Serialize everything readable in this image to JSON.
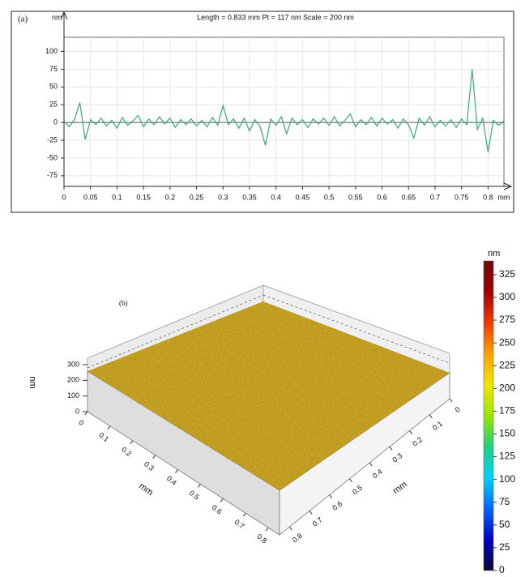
{
  "chart_data": [
    {
      "type": "line",
      "panel_label": "(a)",
      "title": "Length = 0.833 mm  Pt = 117 nm  Scale = 200 nm",
      "xlabel": "mm",
      "ylabel": "nm",
      "x": [
        0,
        0.01,
        0.02,
        0.03,
        0.04,
        0.05,
        0.06,
        0.07,
        0.08,
        0.09,
        0.1,
        0.11,
        0.12,
        0.13,
        0.14,
        0.15,
        0.16,
        0.17,
        0.18,
        0.19,
        0.2,
        0.21,
        0.22,
        0.23,
        0.24,
        0.25,
        0.26,
        0.27,
        0.28,
        0.29,
        0.3,
        0.31,
        0.32,
        0.33,
        0.34,
        0.35,
        0.36,
        0.37,
        0.38,
        0.39,
        0.4,
        0.41,
        0.42,
        0.43,
        0.44,
        0.45,
        0.46,
        0.47,
        0.48,
        0.49,
        0.5,
        0.51,
        0.52,
        0.53,
        0.54,
        0.55,
        0.56,
        0.57,
        0.58,
        0.59,
        0.6,
        0.61,
        0.62,
        0.63,
        0.64,
        0.65,
        0.66,
        0.67,
        0.68,
        0.69,
        0.7,
        0.71,
        0.72,
        0.73,
        0.74,
        0.75,
        0.76,
        0.77,
        0.78,
        0.79,
        0.8,
        0.81,
        0.82,
        0.83
      ],
      "series": [
        {
          "color": "#3aa97a",
          "values": [
            2,
            -6,
            5,
            28,
            -24,
            4,
            -3,
            6,
            -5,
            3,
            -8,
            7,
            -4,
            2,
            10,
            -6,
            5,
            -3,
            8,
            -2,
            6,
            -7,
            4,
            -3,
            5,
            -5,
            3,
            -6,
            7,
            -4,
            24,
            -3,
            5,
            -8,
            6,
            -12,
            4,
            -6,
            -32,
            5,
            -4,
            8,
            -16,
            6,
            -3,
            4,
            -7,
            5,
            -2,
            6,
            -4,
            8,
            -5,
            3,
            12,
            -6,
            4,
            -3,
            7,
            -5,
            6,
            -2,
            4,
            -8,
            5,
            -3,
            -22,
            6,
            -4,
            8,
            -6,
            3,
            -5,
            4,
            -7,
            5,
            -3,
            75,
            -10,
            6,
            -42,
            3,
            -4,
            2
          ]
        }
      ],
      "xlim": [
        0,
        0.83
      ],
      "ylim": [
        -90,
        120
      ],
      "xticks": [
        0,
        0.05,
        0.1,
        0.15,
        0.2,
        0.25,
        0.3,
        0.35,
        0.4,
        0.45,
        0.5,
        0.55,
        0.6,
        0.65,
        0.7,
        0.75,
        0.8
      ],
      "yticks": [
        -75,
        -50,
        -25,
        0,
        25,
        50,
        75,
        100
      ],
      "grid": true
    },
    {
      "type": "surface3d",
      "panel_label": "(b)",
      "xlabel": "mm",
      "ylabel": "mm",
      "zlabel": "nm",
      "xlim": [
        0,
        0.85
      ],
      "ylim": [
        0,
        0.85
      ],
      "zlim": [
        0,
        300
      ],
      "xticks": [
        0,
        0.1,
        0.2,
        0.3,
        0.4,
        0.5,
        0.6,
        0.7,
        0.8
      ],
      "yticks": [
        0,
        0.1,
        0.2,
        0.3,
        0.4,
        0.5,
        0.6,
        0.7,
        0.8
      ],
      "zticks": [
        0,
        100,
        200,
        300
      ],
      "surface_color": "#c9a21f",
      "colorbar": {
        "label": "nm",
        "lim": [
          0,
          340
        ],
        "ticks": [
          0,
          25,
          50,
          75,
          100,
          125,
          150,
          175,
          200,
          225,
          250,
          275,
          300,
          325
        ],
        "colors": [
          "#0a0a30",
          "#0000c8",
          "#0064ff",
          "#00d2ff",
          "#20d080",
          "#9ae600",
          "#f0e600",
          "#ffa000",
          "#f03c00",
          "#a00000",
          "#6e0a0a"
        ]
      }
    }
  ]
}
